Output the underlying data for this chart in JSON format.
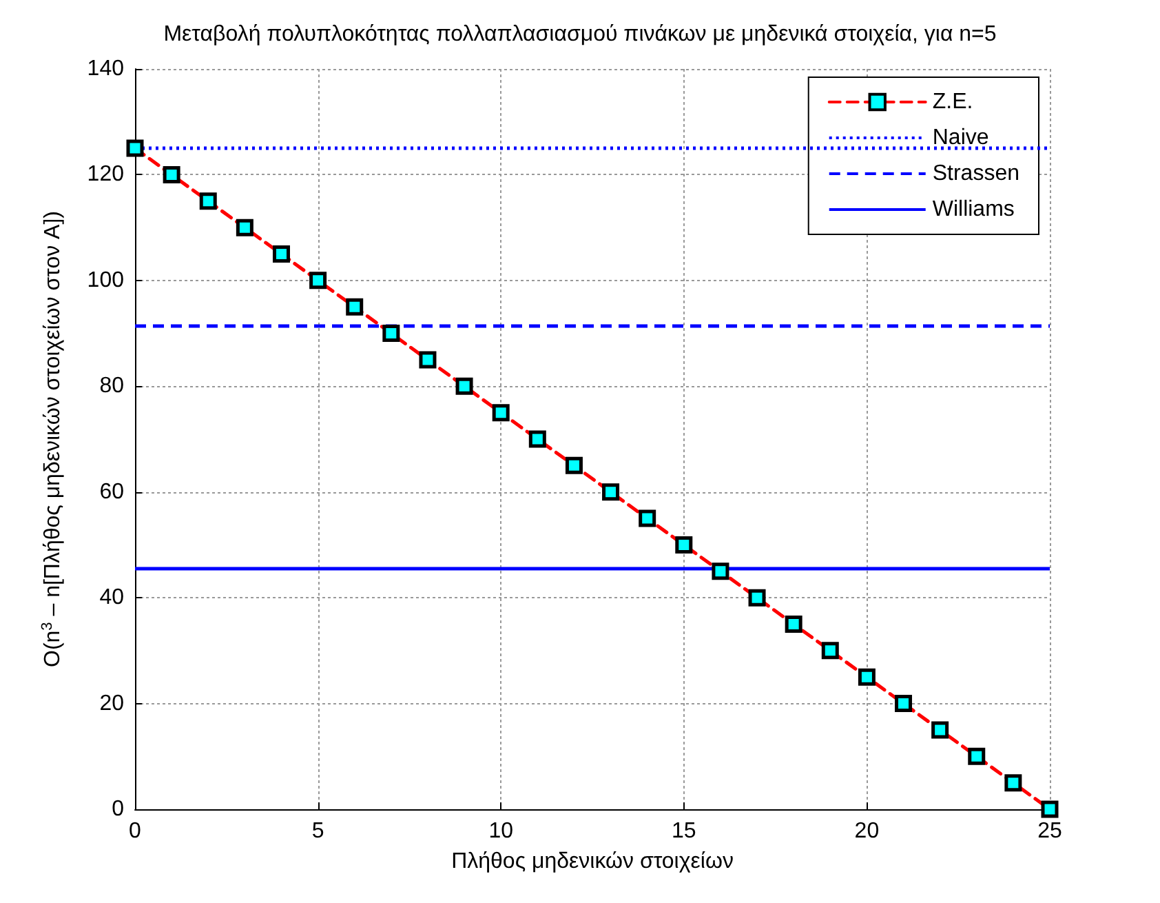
{
  "chart_data": {
    "type": "line",
    "title": "Μεταβολή πολυπλοκότητας πολλαπλασιασμού πινάκων με μηδενικά στοιχεία, για n=5",
    "xlabel": "Πλήθος μηδενικών στοιχείων",
    "ylabel": "O(n$^{3}$ – n[Πλήθος μηδενικών στοιχείων στον A])",
    "x": [
      0,
      1,
      2,
      3,
      4,
      5,
      6,
      7,
      8,
      9,
      10,
      11,
      12,
      13,
      14,
      15,
      16,
      17,
      18,
      19,
      20,
      21,
      22,
      23,
      24,
      25
    ],
    "series": [
      {
        "name": "Z.E.",
        "color": "#ff0000",
        "line_style": "dashed",
        "marker": "square",
        "values": [
          125,
          120,
          115,
          110,
          105,
          100,
          95,
          90,
          85,
          80,
          75,
          70,
          65,
          60,
          55,
          50,
          45,
          40,
          35,
          30,
          25,
          20,
          15,
          10,
          5,
          0
        ]
      }
    ],
    "ref_lines": [
      {
        "axis": "y",
        "value": 125,
        "label": "Naive",
        "color": "#0000ff",
        "line_style": "dotted"
      },
      {
        "axis": "y",
        "value": 91.5,
        "label": "Strassen",
        "color": "#0000ff",
        "line_style": "dashed"
      },
      {
        "axis": "y",
        "value": 45.6,
        "label": "Williams",
        "color": "#0000ff",
        "line_style": "solid"
      }
    ],
    "xlim": [
      0,
      25
    ],
    "xticks": [
      0,
      5,
      10,
      15,
      20,
      25
    ],
    "ylim": [
      0,
      140
    ],
    "yticks": [
      0,
      20,
      40,
      60,
      80,
      100,
      120,
      140
    ],
    "grid": true,
    "legend": "top right"
  }
}
